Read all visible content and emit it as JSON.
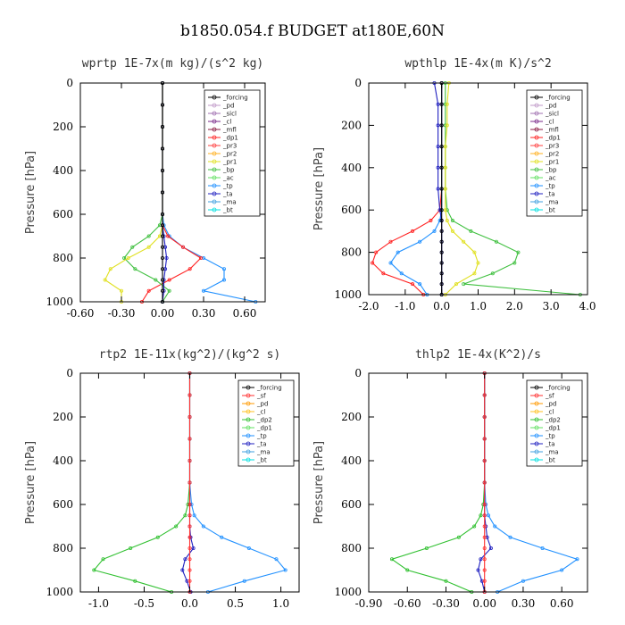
{
  "figure_title": "b1850.054.f  BUDGET at180E,60N",
  "colors": {
    "forcing": "#000000",
    "pd": "#c09ac8",
    "sicl": "#a070b0",
    "cl": "#7a2a8a",
    "mfl": "#8a1840",
    "dp1": "#ff2020",
    "pr3": "#ff4040",
    "pr2": "#ffb020",
    "pr1": "#e0e020",
    "bp": "#40c040",
    "ac": "#60e060",
    "tp": "#2090ff",
    "ta": "#2020c0",
    "ma": "#40a0e0",
    "bt": "#00e0e0",
    "sf": "#ff3030",
    "dp2": "#30c030",
    "cl2": "#ffc020",
    "pd2": "#ff9900"
  },
  "chart_data": [
    {
      "type": "line",
      "title": "wprtp  1E-7x(m kg)/(s^2 kg)",
      "ylabel": "Pressure [hPa]",
      "xlim": [
        -0.6,
        0.75
      ],
      "ylim": [
        1000,
        0
      ],
      "xticks": [
        "-0.60",
        "-0.30",
        "0.00",
        "0.30",
        "0.60"
      ],
      "xtick_values": [
        -0.6,
        -0.3,
        0.0,
        0.3,
        0.6
      ],
      "yticks": [
        "0",
        "200",
        "400",
        "600",
        "800",
        "1000"
      ],
      "ytick_values": [
        0,
        200,
        400,
        600,
        800,
        1000
      ],
      "legend": [
        "_forcing",
        "_pd",
        "_sicl",
        "_cl",
        "_mfl",
        "_dp1",
        "_pr3",
        "_pr2",
        "_pr1",
        "_bp",
        "_ac",
        "_tp",
        "_ta",
        "_ma",
        "_bt"
      ],
      "legend_colors": [
        "forcing",
        "pd",
        "sicl",
        "cl",
        "mfl",
        "dp1",
        "pr3",
        "pr2",
        "pr1",
        "bp",
        "ac",
        "tp",
        "ta",
        "ma",
        "bt"
      ],
      "levels": [
        0,
        100,
        200,
        300,
        400,
        500,
        600,
        650,
        700,
        750,
        800,
        850,
        900,
        950,
        1000
      ],
      "series": [
        {
          "color": "tp",
          "x": [
            0,
            0,
            0,
            0,
            0,
            0,
            0,
            0.01,
            0.05,
            0.15,
            0.3,
            0.45,
            0.45,
            0.3,
            0.68
          ]
        },
        {
          "color": "dp1",
          "x": [
            0,
            0,
            0,
            0,
            0,
            0,
            0,
            0,
            0.04,
            0.15,
            0.28,
            0.2,
            0.05,
            -0.1,
            -0.15
          ]
        },
        {
          "color": "bp",
          "x": [
            0,
            0,
            0,
            0,
            0,
            0,
            0,
            -0.02,
            -0.1,
            -0.22,
            -0.28,
            -0.2,
            -0.05,
            0.05,
            0.0
          ]
        },
        {
          "color": "pr1",
          "x": [
            0,
            0,
            0,
            0,
            0,
            0,
            0,
            0,
            -0.02,
            -0.1,
            -0.25,
            -0.38,
            -0.42,
            -0.3,
            -0.3
          ]
        },
        {
          "color": "ta",
          "x": [
            0,
            0,
            0,
            0,
            0,
            0,
            0,
            0,
            0.01,
            0.02,
            0.03,
            0.02,
            0.01,
            0.01,
            0.0
          ]
        },
        {
          "color": "forcing",
          "x": [
            0,
            0,
            0,
            0,
            0,
            0,
            0,
            0,
            0,
            0,
            0,
            0,
            0,
            0,
            0
          ]
        }
      ]
    },
    {
      "type": "line",
      "title": "wpthlp  1E-4x(m K)/s^2",
      "ylabel": "Pressure [hPa]",
      "xlim": [
        -2.0,
        4.0
      ],
      "ylim": [
        1000,
        0
      ],
      "xticks": [
        "-2.0",
        "-1.0",
        "0.0",
        "1.0",
        "2.0",
        "3.0",
        "4.0"
      ],
      "xtick_values": [
        -2.0,
        -1.0,
        0.0,
        1.0,
        2.0,
        3.0,
        4.0
      ],
      "yticks": [
        "0",
        "200",
        "400",
        "600",
        "800",
        "1000"
      ],
      "ytick_values": [
        0,
        200,
        400,
        600,
        800,
        1000
      ],
      "legend": [
        "_forcing",
        "_pd",
        "_sicl",
        "_cl",
        "_mfl",
        "_dp1",
        "_pr3",
        "_pr2",
        "_pr1",
        "_bp",
        "_ac",
        "_tp",
        "_ta",
        "_ma",
        "_bt"
      ],
      "legend_colors": [
        "forcing",
        "pd",
        "sicl",
        "cl",
        "mfl",
        "dp1",
        "pr3",
        "pr2",
        "pr1",
        "bp",
        "ac",
        "tp",
        "ta",
        "ma",
        "bt"
      ],
      "levels": [
        0,
        100,
        200,
        300,
        400,
        500,
        600,
        650,
        700,
        750,
        800,
        850,
        900,
        950,
        1000
      ],
      "series": [
        {
          "color": "bp",
          "x": [
            0.1,
            0.1,
            0.1,
            0.1,
            0.1,
            0.1,
            0.15,
            0.3,
            0.8,
            1.5,
            2.1,
            2.0,
            1.4,
            0.6,
            3.8
          ]
        },
        {
          "color": "dp1",
          "x": [
            0,
            0,
            0,
            0,
            0,
            0,
            -0.05,
            -0.3,
            -0.8,
            -1.4,
            -1.8,
            -1.9,
            -1.6,
            -0.8,
            -0.5
          ]
        },
        {
          "color": "tp",
          "x": [
            0,
            0,
            0,
            0,
            0,
            0,
            0,
            -0.05,
            -0.2,
            -0.6,
            -1.2,
            -1.4,
            -1.1,
            -0.6,
            -0.4
          ]
        },
        {
          "color": "pr1",
          "x": [
            0.2,
            0.15,
            0.15,
            0.1,
            0.1,
            0.1,
            0.1,
            0.15,
            0.3,
            0.6,
            0.9,
            1.0,
            0.9,
            0.4,
            0.1
          ]
        },
        {
          "color": "ta",
          "x": [
            -0.2,
            -0.1,
            -0.1,
            -0.1,
            -0.1,
            -0.1,
            -0.05,
            0,
            0,
            0,
            0,
            0,
            0,
            0,
            0
          ]
        },
        {
          "color": "forcing",
          "x": [
            0,
            0,
            0,
            0,
            0,
            0,
            0,
            0,
            0,
            0,
            0,
            0,
            0,
            0,
            0
          ]
        }
      ]
    },
    {
      "type": "line",
      "title": "rtp2  1E-11x(kg^2)/(kg^2 s)",
      "ylabel": "Pressure [hPa]",
      "xlim": [
        -1.2,
        1.2
      ],
      "ylim": [
        1000,
        0
      ],
      "xticks": [
        "-1.0",
        "-0.5",
        "0.0",
        "0.5",
        "1.0"
      ],
      "xtick_values": [
        -1.0,
        -0.5,
        0.0,
        0.5,
        1.0
      ],
      "yticks": [
        "0",
        "200",
        "400",
        "600",
        "800",
        "1000"
      ],
      "ytick_values": [
        0,
        200,
        400,
        600,
        800,
        1000
      ],
      "legend": [
        "_forcing",
        "_sf",
        "_pd",
        "_cl",
        "_dp2",
        "_dp1",
        "_tp",
        "_ta",
        "_ma",
        "_bt"
      ],
      "legend_colors": [
        "forcing",
        "sf",
        "pd2",
        "cl2",
        "dp2",
        "ac",
        "tp",
        "ta",
        "ma",
        "bt"
      ],
      "levels": [
        0,
        100,
        200,
        300,
        400,
        500,
        600,
        650,
        700,
        750,
        800,
        850,
        900,
        950,
        1000
      ],
      "series": [
        {
          "color": "tp",
          "x": [
            0,
            0,
            0,
            0,
            0,
            0,
            0.02,
            0.05,
            0.15,
            0.35,
            0.65,
            0.95,
            1.05,
            0.6,
            0.2
          ]
        },
        {
          "color": "dp2",
          "x": [
            0,
            0,
            0,
            0,
            0,
            0,
            -0.02,
            -0.05,
            -0.15,
            -0.35,
            -0.65,
            -0.95,
            -1.05,
            -0.6,
            -0.2
          ]
        },
        {
          "color": "ta",
          "x": [
            0,
            0,
            0,
            0,
            0,
            0,
            0,
            0,
            0,
            0.01,
            0.04,
            -0.05,
            -0.08,
            -0.03,
            0.01
          ]
        },
        {
          "color": "sf",
          "x": [
            0,
            0,
            0,
            0,
            0,
            0,
            0,
            0,
            0,
            0,
            0,
            0,
            0,
            0,
            0
          ]
        }
      ]
    },
    {
      "type": "line",
      "title": "thlp2  1E-4x(K^2)/s",
      "ylabel": "Pressure [hPa]",
      "xlim": [
        -0.9,
        0.8
      ],
      "ylim": [
        1000,
        0
      ],
      "xticks": [
        "-0.90",
        "-0.60",
        "-0.30",
        "0.00",
        "0.30",
        "0.60"
      ],
      "xtick_values": [
        -0.9,
        -0.6,
        -0.3,
        0.0,
        0.3,
        0.6
      ],
      "yticks": [
        "0",
        "200",
        "400",
        "600",
        "800",
        "1000"
      ],
      "ytick_values": [
        0,
        200,
        400,
        600,
        800,
        1000
      ],
      "legend": [
        "_forcing",
        "_sf",
        "_pd",
        "_cl",
        "_dp2",
        "_dp1",
        "_tp",
        "_ta",
        "_ma",
        "_bt"
      ],
      "legend_colors": [
        "forcing",
        "sf",
        "pd2",
        "cl2",
        "dp2",
        "ac",
        "tp",
        "ta",
        "ma",
        "bt"
      ],
      "levels": [
        0,
        100,
        200,
        300,
        400,
        500,
        600,
        650,
        700,
        750,
        800,
        850,
        900,
        950,
        1000
      ],
      "series": [
        {
          "color": "tp",
          "x": [
            0,
            0,
            0,
            0,
            0,
            0,
            0.01,
            0.03,
            0.08,
            0.2,
            0.45,
            0.72,
            0.6,
            0.3,
            0.1
          ]
        },
        {
          "color": "dp2",
          "x": [
            0,
            0,
            0,
            0,
            0,
            0,
            -0.01,
            -0.03,
            -0.08,
            -0.2,
            -0.45,
            -0.72,
            -0.6,
            -0.3,
            -0.1
          ]
        },
        {
          "color": "ta",
          "x": [
            0,
            0,
            0,
            0,
            0,
            0,
            0,
            0,
            0.01,
            0.02,
            0.05,
            -0.03,
            -0.05,
            -0.02,
            0
          ]
        },
        {
          "color": "sf",
          "x": [
            0,
            0,
            0,
            0,
            0,
            0,
            0,
            0,
            0,
            0,
            0,
            0,
            0,
            0,
            0
          ]
        }
      ]
    }
  ]
}
